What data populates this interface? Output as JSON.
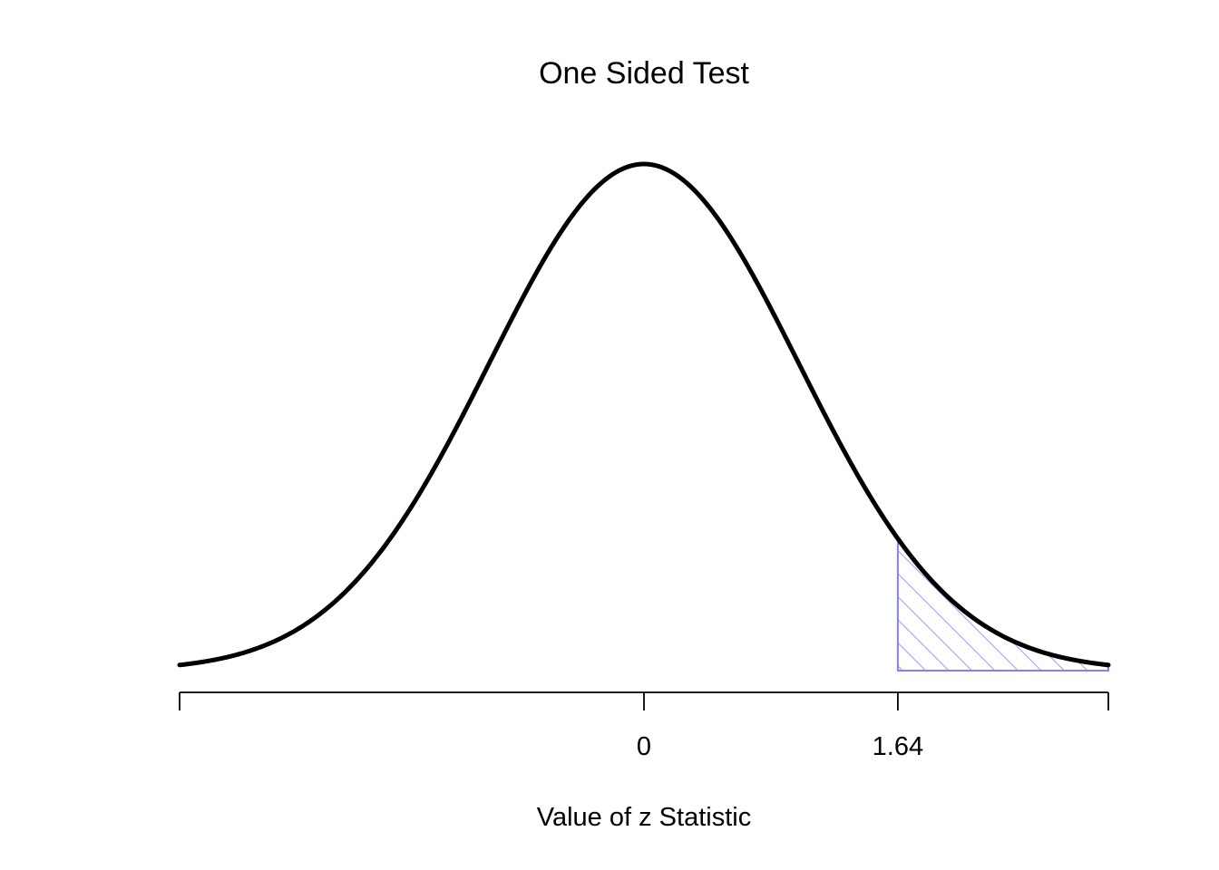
{
  "chart_data": {
    "type": "area",
    "title": "One Sided Test",
    "xlabel": "Value of z Statistic",
    "ylabel": "",
    "distribution": "standard normal density",
    "xlim": [
      -3.0,
      3.0
    ],
    "ylim": [
      0,
      0.4
    ],
    "x_ticks": [
      -3.0,
      0,
      1.64,
      3.0
    ],
    "x_tick_labels": [
      "",
      "0",
      "1.64",
      ""
    ],
    "curve": {
      "x": [
        -3.0,
        -2.75,
        -2.5,
        -2.25,
        -2.0,
        -1.75,
        -1.5,
        -1.25,
        -1.0,
        -0.75,
        -0.5,
        -0.25,
        0,
        0.25,
        0.5,
        0.75,
        1.0,
        1.25,
        1.5,
        1.64,
        1.75,
        2.0,
        2.25,
        2.5,
        2.75,
        3.0
      ],
      "y": [
        0.0044,
        0.0091,
        0.0175,
        0.0317,
        0.054,
        0.0863,
        0.1295,
        0.1826,
        0.242,
        0.3011,
        0.3521,
        0.3867,
        0.3989,
        0.3867,
        0.3521,
        0.3011,
        0.242,
        0.1826,
        0.1295,
        0.104,
        0.0863,
        0.054,
        0.0317,
        0.0175,
        0.0091,
        0.0044
      ],
      "color": "#000000"
    },
    "shaded_region": {
      "x_from": 1.64,
      "x_to": 3.0,
      "pattern": "diagonal-hatch",
      "color": "#8080ff"
    },
    "grid": false,
    "legend": "none"
  }
}
